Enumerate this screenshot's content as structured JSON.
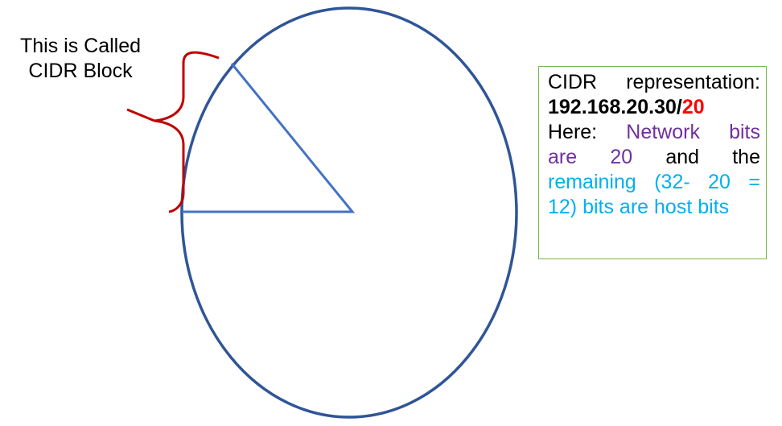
{
  "callout": {
    "line1": "This is Called",
    "line2": "CIDR Block"
  },
  "info_box": {
    "heading_word1": "CIDR",
    "heading_word2": "representation:",
    "ip_address": "192.168.20.30/",
    "prefix": "20",
    "here_label": "Here:",
    "network_word1": "Network",
    "network_word2": "bits",
    "are_word": "are",
    "network_count": "20",
    "and_word": "and",
    "the_word": "the",
    "remaining_word1": "remaining",
    "remaining_word2": "(32-",
    "remaining_word3": "20",
    "remaining_word4": "=",
    "host_line": "12) bits are host bits"
  },
  "colors": {
    "circle_stroke": "#2f5597",
    "sector_stroke": "#4472c4",
    "brace": "#c00000",
    "prefix_highlight": "#ff0000",
    "network_text": "#7030a0",
    "host_text": "#00b0f0",
    "box_border": "#7ab648"
  }
}
